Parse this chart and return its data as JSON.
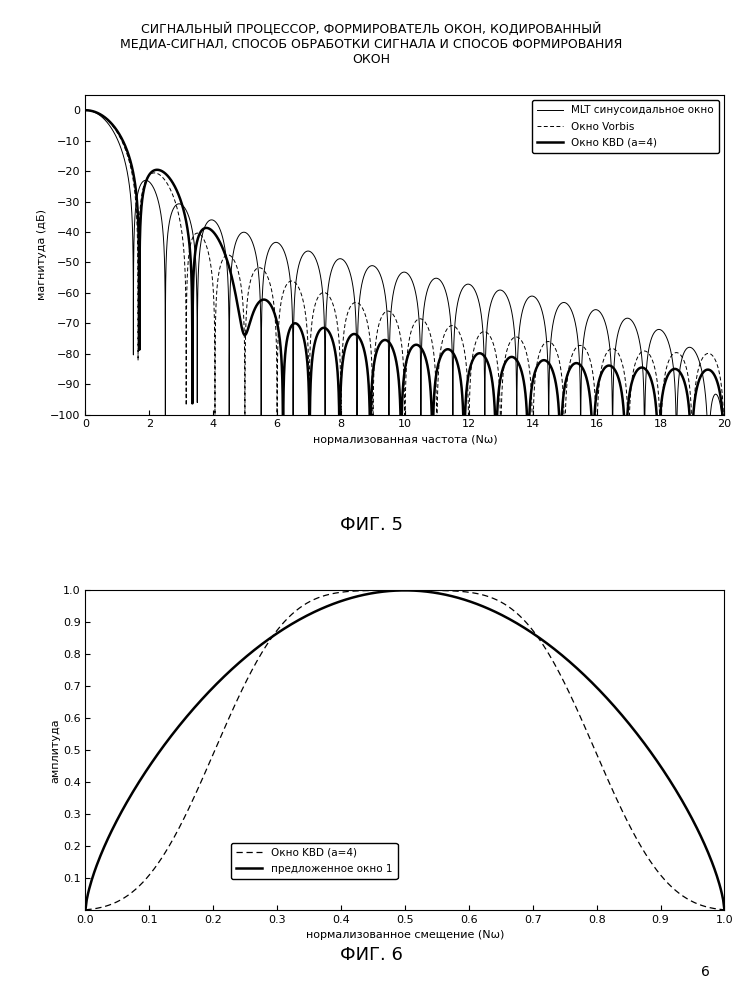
{
  "title": "СИГНАЛЬНЫЙ ПРОЦЕССОР, ФОРМИРОВАТЕЛЬ ОКОН, КОДИРОВАННЫЙ\nМЕДИА-СИГНАЛ, СПОСОБ ОБРАБОТКИ СИГНАЛА И СПОСОБ ФОРМИРОВАНИЯ\nОКОН",
  "title_fontsize": 9,
  "fig1_xlabel": "нормализованная частота (Nω)",
  "fig1_ylabel": "магнитуда (дБ)",
  "fig1_xlim": [
    0,
    20
  ],
  "fig1_ylim": [
    -100,
    5
  ],
  "fig1_yticks": [
    0,
    -10,
    -20,
    -30,
    -40,
    -50,
    -60,
    -70,
    -80,
    -90,
    -100
  ],
  "fig1_xticks": [
    0,
    2,
    4,
    6,
    8,
    10,
    12,
    14,
    16,
    18,
    20
  ],
  "fig1_caption": "ФИГ. 5",
  "fig2_xlabel": "нормализованное смещение (Nω)",
  "fig2_ylabel": "амплитуда",
  "fig2_xlim": [
    0,
    1
  ],
  "fig2_ylim": [
    0,
    1
  ],
  "fig2_yticks": [
    0.1,
    0.2,
    0.3,
    0.4,
    0.5,
    0.6,
    0.7,
    0.8,
    0.9,
    1.0
  ],
  "fig2_xticks": [
    0,
    0.1,
    0.2,
    0.3,
    0.4,
    0.5,
    0.6,
    0.7,
    0.8,
    0.9,
    1
  ],
  "fig2_caption": "ФИГ. 6",
  "legend1": [
    "MLT синусоидальное окно",
    "Окно Vorbis",
    "Окно KBD (a=4)"
  ],
  "legend2": [
    "Окно KBD (a=4)",
    "предложенное окно 1"
  ],
  "page_num": "6"
}
